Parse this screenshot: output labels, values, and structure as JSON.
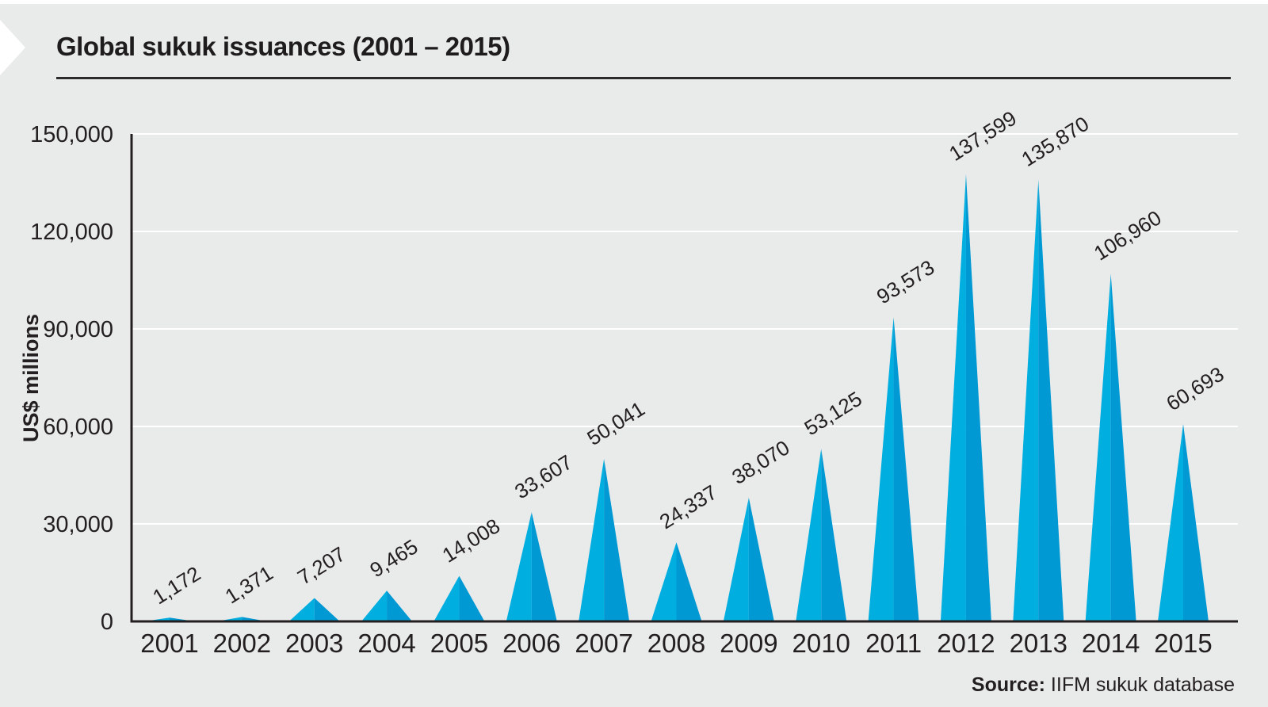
{
  "header": {
    "title": "Global sukuk issuances (2001 – 2015)"
  },
  "source": {
    "label": "Source:",
    "text": " IIFM sukuk database"
  },
  "chart_data": {
    "type": "bar",
    "mark_shape": "triangle-cone",
    "title": "Global sukuk issuances (2001 – 2015)",
    "categories": [
      "2001",
      "2002",
      "2003",
      "2004",
      "2005",
      "2006",
      "2007",
      "2008",
      "2009",
      "2010",
      "2011",
      "2012",
      "2013",
      "2014",
      "2015"
    ],
    "values": [
      1172,
      1371,
      7207,
      9465,
      14008,
      33607,
      50041,
      24337,
      38070,
      53125,
      93573,
      137599,
      135870,
      106960,
      60693
    ],
    "value_labels": [
      "1,172",
      "1,371",
      "7,207",
      "9,465",
      "14,008",
      "33,607",
      "50,041",
      "24,337",
      "38,070",
      "53,125",
      "93,573",
      "137,599",
      "135,870",
      "106,960",
      "60,693"
    ],
    "xlabel": "",
    "ylabel": "US$ millions",
    "ylim": [
      0,
      150000
    ],
    "yticks": [
      0,
      30000,
      60000,
      90000,
      120000,
      150000
    ],
    "ytick_labels": [
      "0",
      "30,000",
      "60,000",
      "90,000",
      "120,000",
      "150,000"
    ],
    "grid": true,
    "legend": false,
    "value_label_rotation_deg": -32,
    "colors": {
      "cone_left": "#00AEE0",
      "cone_right": "#0099D3",
      "grid": "#FFFFFF",
      "axis": "#231F20",
      "text": "#231F20",
      "background": "#E9EAEA"
    }
  }
}
